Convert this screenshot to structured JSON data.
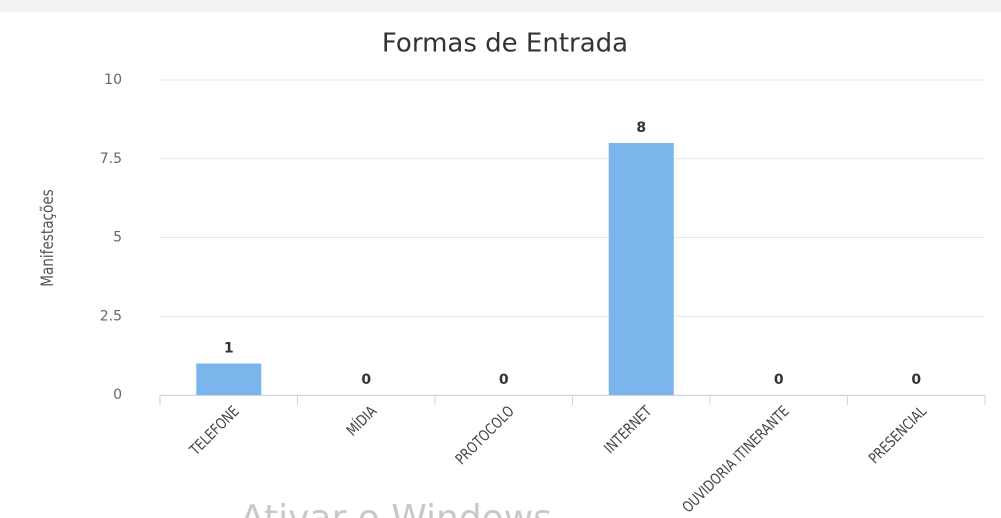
{
  "chart_data": {
    "type": "bar",
    "title": "Formas de Entrada",
    "y_label": "Manifestações",
    "categories": [
      "TELEFONE",
      "MÍDIA",
      "PROTOCOLO",
      "INTERNET",
      "OUVIDORIA ITINERANTE",
      "PRESENCIAL"
    ],
    "values": [
      1,
      0,
      0,
      8,
      0,
      0
    ],
    "color": "#7cb5ec",
    "ylim": [
      0,
      10
    ],
    "yticks": [
      0,
      2.5,
      5,
      7.5,
      10
    ],
    "grid": true,
    "data_labels": true
  },
  "watermark": "Ativar o Windows"
}
